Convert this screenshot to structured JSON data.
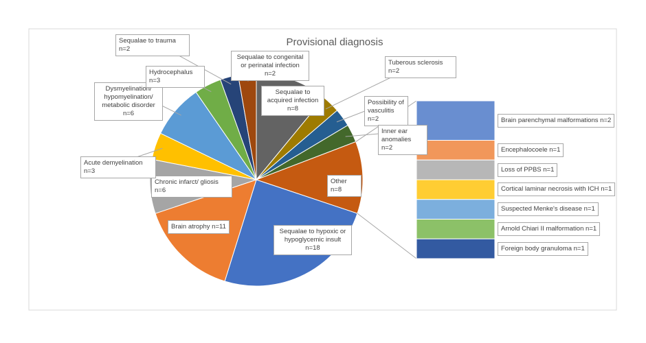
{
  "chart_data": {
    "type": "pie-of-bar",
    "title": "Provisional diagnosis",
    "categories": [
      "Sequalae to acquired infection",
      "Tuberous sclerosis",
      "Possibility of vasculitis",
      "Inner ear anomalies",
      "Other",
      "Sequalae to hypoxic or hypoglycemic insult",
      "Brain atrophy",
      "Chronic infarct/ gliosis",
      "Acute demyelination",
      "Dysmyelination/ hypomyelination/ metabolic disorder",
      "Hydrocephalus",
      "Sequalae to trauma",
      "Sequalae to congenital or perinatal infection"
    ],
    "values": [
      8,
      2,
      2,
      2,
      8,
      18,
      11,
      6,
      3,
      6,
      3,
      2,
      2
    ],
    "value_labels": [
      "n=8",
      "n=2",
      "n=2",
      "n=2",
      "n=8",
      "n=18",
      "n=11",
      "n=6",
      "n=3",
      "n=6",
      "n=3",
      "n=2",
      "n=2"
    ],
    "colors": [
      "#636363",
      "#9e7b00",
      "#255e91",
      "#43682b",
      "#c55a11",
      "#4472c4",
      "#ed7d31",
      "#a5a5a5",
      "#ffc000",
      "#5b9bd5",
      "#70ad47",
      "#264478",
      "#9e480e"
    ],
    "bar": {
      "categories": [
        "Brain parenchymal malformations",
        "Encephalocoele",
        "Loss of PPBS",
        "Cortical laminar necrosis with ICH",
        "Suspected Menke's disease",
        "Arnold Chiari II malformation",
        "Foreign body granuloma"
      ],
      "values": [
        2,
        1,
        1,
        1,
        1,
        1,
        1
      ],
      "value_labels": [
        "n=2",
        "n=1",
        "n=1",
        "n=1",
        "n=1",
        "n=1",
        "n=1"
      ],
      "colors": [
        "#698ed0",
        "#f1975a",
        "#b7b7b7",
        "#ffcd33",
        "#7cafdd",
        "#8cc168",
        "#335aa1"
      ]
    }
  }
}
